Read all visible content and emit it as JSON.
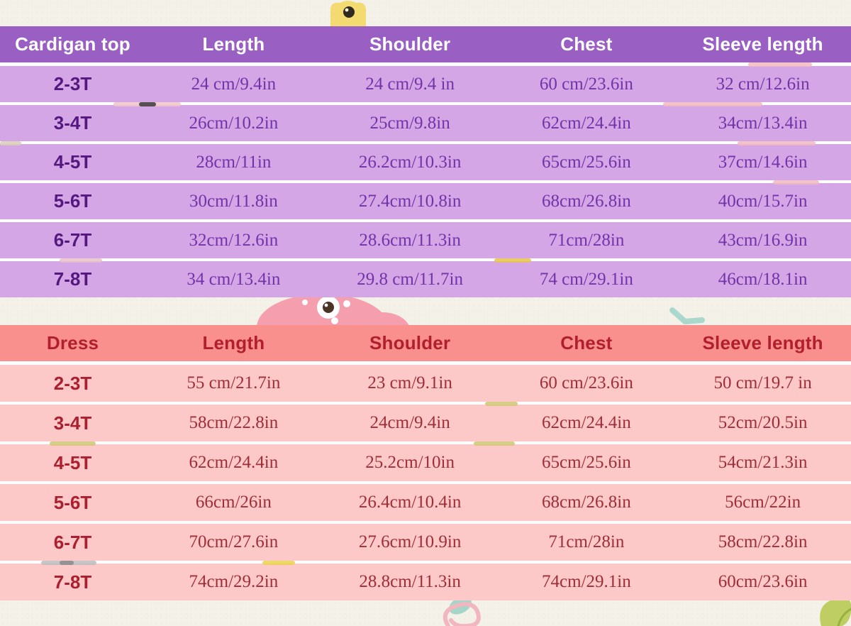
{
  "page": {
    "background": "#f4f1e9"
  },
  "tables": [
    {
      "name": "Cardigan top size chart",
      "theme": {
        "header_bg": "#9a5fc2",
        "header_text": "#ffffff",
        "row_bg": "#d4a6e6",
        "value_text": "#7233a8",
        "size_text": "#55187f"
      },
      "headers": [
        "Cardigan top",
        "Length",
        "Shoulder",
        "Chest",
        "Sleeve length"
      ],
      "rows": [
        {
          "size": "2-3T",
          "values": [
            "24 cm/9.4in",
            "24 cm/9.4 in",
            "60 cm/23.6in",
            "32 cm/12.6in"
          ]
        },
        {
          "size": "3-4T",
          "values": [
            "26cm/10.2in",
            "25cm/9.8in",
            "62cm/24.4in",
            "34cm/13.4in"
          ]
        },
        {
          "size": "4-5T",
          "values": [
            "28cm/11in",
            "26.2cm/10.3in",
            "65cm/25.6in",
            "37cm/14.6in"
          ]
        },
        {
          "size": "5-6T",
          "values": [
            "30cm/11.8in",
            "27.4cm/10.8in",
            "68cm/26.8in",
            "40cm/15.7in"
          ]
        },
        {
          "size": "6-7T",
          "values": [
            "32cm/12.6in",
            "28.6cm/11.3in",
            "71cm/28in",
            "43cm/16.9in"
          ]
        },
        {
          "size": "7-8T",
          "values": [
            "34 cm/13.4in",
            "29.8 cm/11.7in",
            "74 cm/29.1in",
            "46cm/18.1in"
          ]
        }
      ]
    },
    {
      "name": "Dress size chart",
      "theme": {
        "header_bg": "#f9908d",
        "header_text": "#b01f2d",
        "row_bg": "#fcc8c8",
        "value_text": "#9e2e38",
        "size_text": "#ab1f2f"
      },
      "headers": [
        "Dress",
        "Length",
        "Shoulder",
        "Chest",
        "Sleeve length"
      ],
      "rows": [
        {
          "size": "2-3T",
          "values": [
            "55 cm/21.7in",
            "23 cm/9.1in",
            "60 cm/23.6in",
            "50 cm/19.7 in"
          ]
        },
        {
          "size": "3-4T",
          "values": [
            "58cm/22.8in",
            "24cm/9.4in",
            "62cm/24.4in",
            "52cm/20.5in"
          ]
        },
        {
          "size": "4-5T",
          "values": [
            "62cm/24.4in",
            "25.2cm/10in",
            "65cm/25.6in",
            "54cm/21.3in"
          ]
        },
        {
          "size": "5-6T",
          "values": [
            "66cm/26in",
            "26.4cm/10.4in",
            "68cm/26.8in",
            "56cm/22in"
          ]
        },
        {
          "size": "6-7T",
          "values": [
            "70cm/27.6in",
            "27.6cm/10.9in",
            "71cm/28in",
            "58cm/22.8in"
          ]
        },
        {
          "size": "7-8T",
          "values": [
            "74cm/29.2in",
            "28.8cm/11.3in",
            "74cm/29.1in",
            "60cm/23.6in"
          ]
        }
      ]
    }
  ],
  "decorations": {
    "top": "yellow-animal-head-icon",
    "middle": [
      "pink-flower-icon",
      "teal-sprout-icon"
    ],
    "bottom": [
      "teal-leaf-icon",
      "pink-outline-doodle-icon",
      "green-leaf-icon"
    ]
  }
}
